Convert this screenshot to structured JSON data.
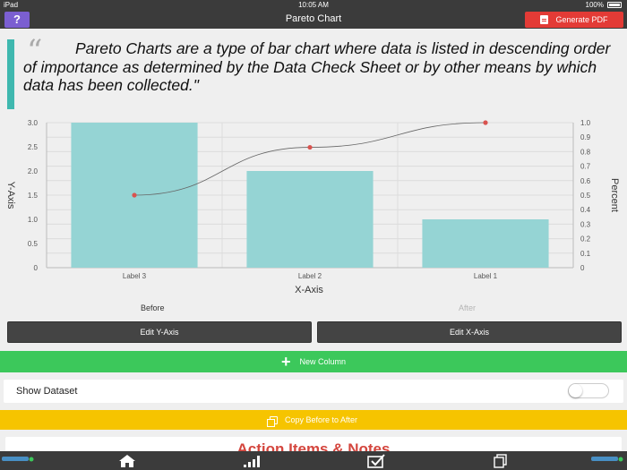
{
  "status_bar": {
    "carrier": "iPad",
    "time": "10:05 AM",
    "battery": "100%"
  },
  "nav": {
    "help_label": "?",
    "title": "Pareto Chart",
    "pdf_label": "Generate PDF"
  },
  "quote": {
    "mark": "“",
    "text": "Pareto Charts are a type of bar chart where data is listed in descending order of importance as determined by the Data Check Sheet or by other means by which data has been collected.\""
  },
  "chart_data": {
    "type": "bar",
    "categories": [
      "Label 3",
      "Label 2",
      "Label 1"
    ],
    "values": [
      3.0,
      2.0,
      1.0
    ],
    "cumulative_percent": [
      0.5,
      0.83,
      1.0
    ],
    "xlabel": "X-Axis",
    "ylabel": "Y-Axis",
    "y2label": "Percent",
    "ylim": [
      0,
      3.0
    ],
    "y2lim": [
      0,
      1.0
    ],
    "yticks": [
      "0",
      "0.5",
      "1.0",
      "1.5",
      "2.0",
      "2.5",
      "3.0"
    ],
    "y2ticks": [
      "0",
      "0.1",
      "0.2",
      "0.3",
      "0.4",
      "0.5",
      "0.6",
      "0.7",
      "0.8",
      "0.9",
      "1.0"
    ],
    "bar_color": "#95d4d4",
    "line_color": "#666666",
    "point_color": "#d9534f",
    "grid": true
  },
  "before_after": {
    "before": "Before",
    "after": "After"
  },
  "buttons": {
    "edit_y": "Edit Y-Axis",
    "edit_x": "Edit X-Axis",
    "new_column": "New Column",
    "show_dataset": "Show Dataset",
    "copy_before_after": "Copy Before to After"
  },
  "show_dataset_on": false,
  "notes": {
    "title": "Action Items & Notes"
  },
  "tabbar": {
    "icons": [
      "home-icon",
      "chart-icon",
      "checklist-icon",
      "copy-icon"
    ]
  },
  "colors": {
    "purple": "#7b5fd1",
    "red": "#e33b36",
    "green": "#3cc85b",
    "yellow": "#f6c400",
    "teal": "#3fb8af",
    "dark": "#3b3b3b"
  }
}
